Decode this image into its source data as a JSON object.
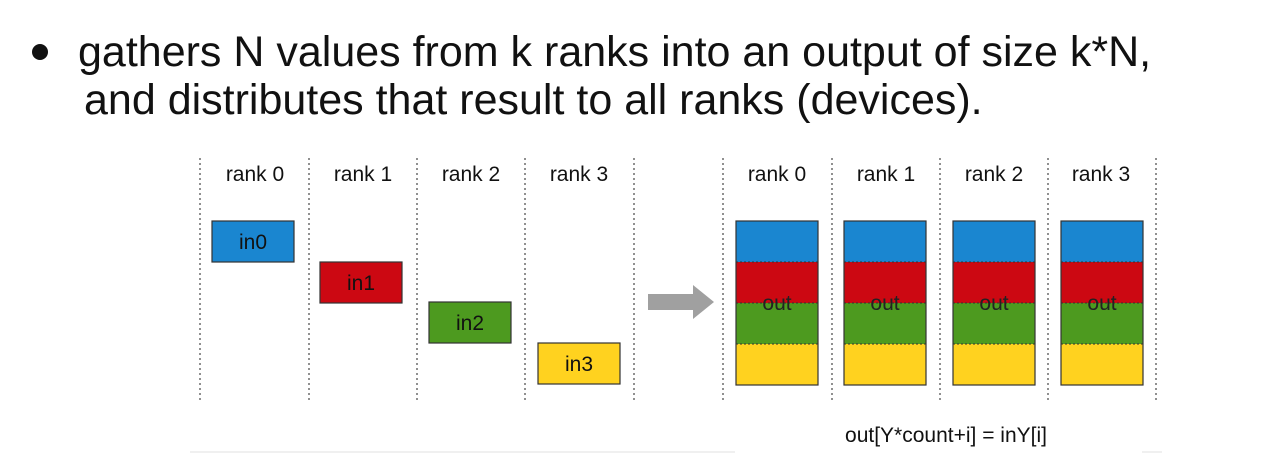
{
  "bullet": {
    "line1": "gathers N values from k ranks into an output of size k*N,",
    "line2": "and distributes that result to all ranks (devices)."
  },
  "diagram": {
    "left_ranks": [
      "rank 0",
      "rank 1",
      "rank 2",
      "rank 3"
    ],
    "right_ranks": [
      "rank 0",
      "rank 1",
      "rank 2",
      "rank 3"
    ],
    "inputs": [
      {
        "label": "in0",
        "color": "#1a86d0"
      },
      {
        "label": "in1",
        "color": "#cc0812"
      },
      {
        "label": "in2",
        "color": "#4d9a1f"
      },
      {
        "label": "in3",
        "color": "#ffd21f"
      }
    ],
    "output_label": "out",
    "formula": "out[Y*count+i] = inY[i]",
    "arrow_color": "#a0a0a0"
  }
}
